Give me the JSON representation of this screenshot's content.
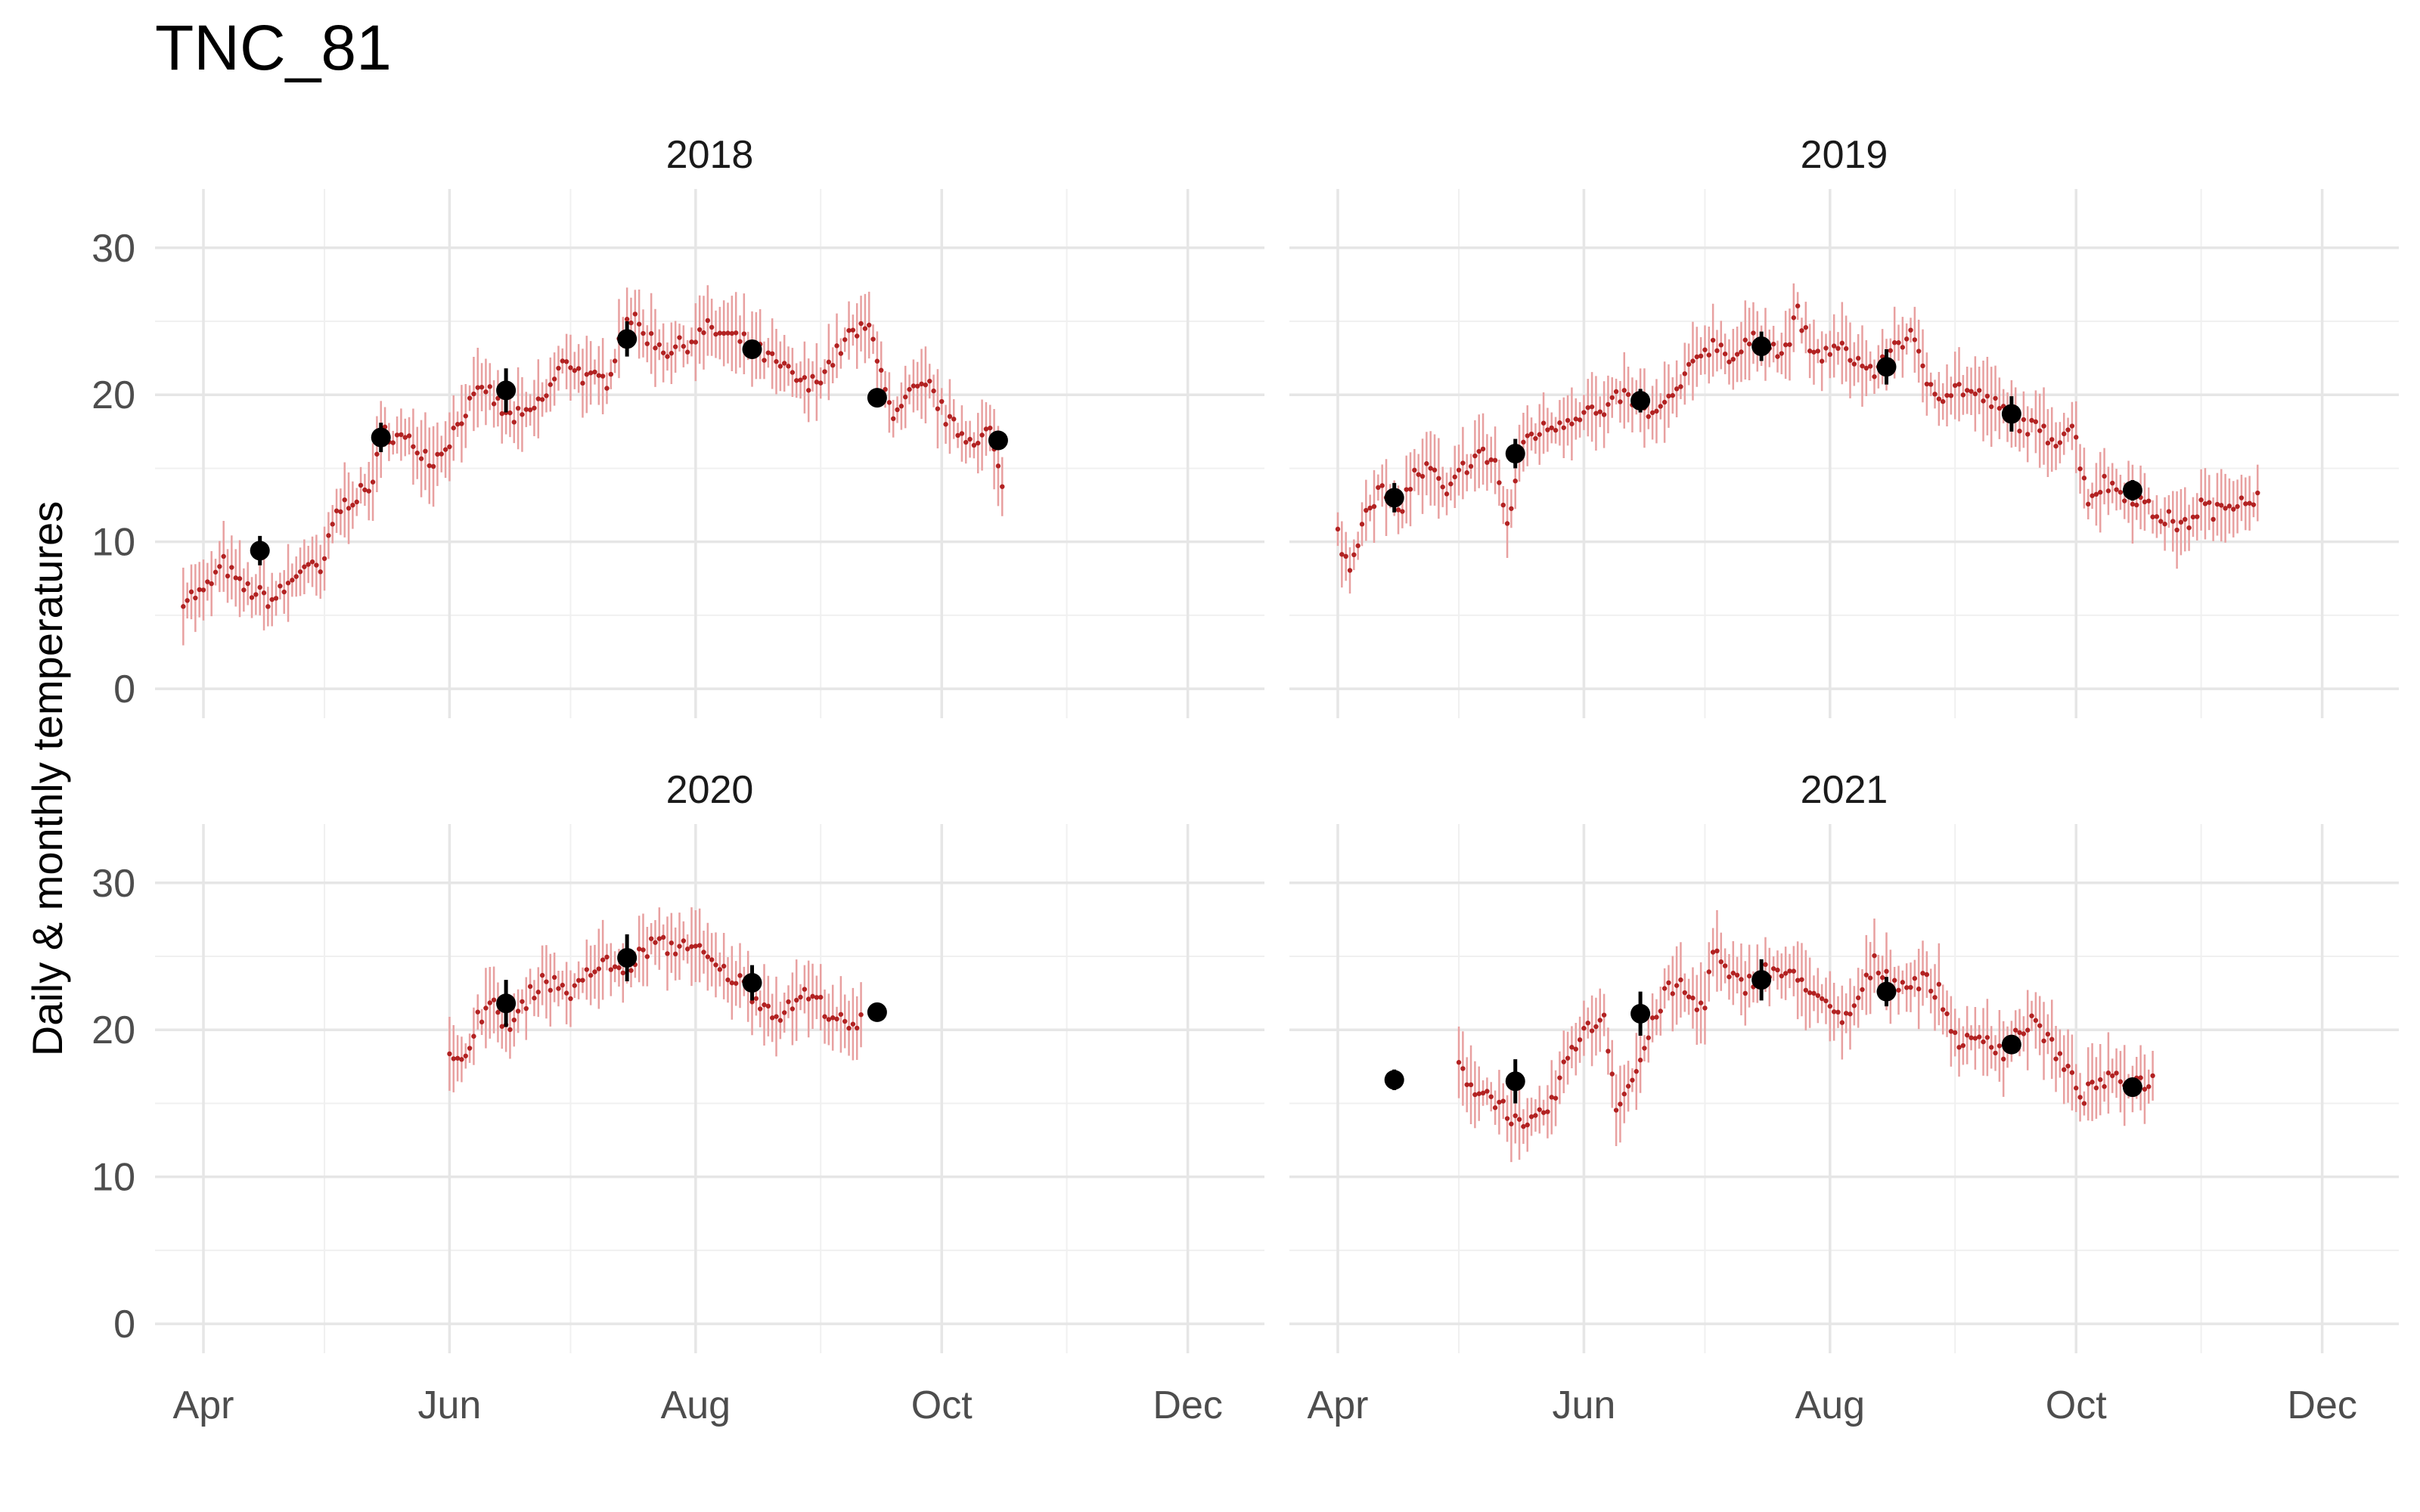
{
  "chart_data": {
    "type": "scatter",
    "title": "TNC_81",
    "ylabel": "Daily & monthly temperatures",
    "xlabel": "",
    "ylim": [
      0,
      30
    ],
    "yticks": [
      0,
      10,
      20,
      30
    ],
    "xticks": [
      {
        "label": "Apr",
        "month": 4
      },
      {
        "label": "Jun",
        "month": 6
      },
      {
        "label": "Aug",
        "month": 8
      },
      {
        "label": "Oct",
        "month": 10
      },
      {
        "label": "Dec",
        "month": 12
      }
    ],
    "xrange": [
      "03-20",
      "12-20"
    ],
    "grid": true,
    "series_style": {
      "daily": {
        "name": "",
        "color": "#b22222",
        "errorbar_color": "#e8a0a0"
      },
      "monthly": {
        "name": "",
        "color": "#000000"
      }
    },
    "panels": [
      {
        "label": "2018",
        "daily_range": [
          "03-27",
          "10-16"
        ],
        "daily_path": [
          [
            "03-27",
            6.2
          ],
          [
            "04-01",
            6.5
          ],
          [
            "04-06",
            8.5
          ],
          [
            "04-10",
            7.0
          ],
          [
            "04-14",
            6.5
          ],
          [
            "04-18",
            6.0
          ],
          [
            "04-22",
            7.0
          ],
          [
            "04-26",
            8.5
          ],
          [
            "04-30",
            7.8
          ],
          [
            "05-04",
            12.0
          ],
          [
            "05-08",
            13.0
          ],
          [
            "05-12",
            13.5
          ],
          [
            "05-16",
            17.5
          ],
          [
            "05-20",
            17.0
          ],
          [
            "05-24",
            16.5
          ],
          [
            "05-28",
            15.5
          ],
          [
            "06-01",
            17.0
          ],
          [
            "06-05",
            19.0
          ],
          [
            "06-10",
            20.5
          ],
          [
            "06-15",
            18.5
          ],
          [
            "06-20",
            18.5
          ],
          [
            "06-25",
            20.0
          ],
          [
            "06-30",
            22.5
          ],
          [
            "07-05",
            21.0
          ],
          [
            "07-10",
            21.0
          ],
          [
            "07-15",
            25.5
          ],
          [
            "07-20",
            24.0
          ],
          [
            "07-25",
            23.0
          ],
          [
            "07-30",
            23.5
          ],
          [
            "08-04",
            24.5
          ],
          [
            "08-09",
            24.0
          ],
          [
            "08-14",
            23.5
          ],
          [
            "08-19",
            22.5
          ],
          [
            "08-24",
            21.5
          ],
          [
            "08-29",
            20.5
          ],
          [
            "09-03",
            22.0
          ],
          [
            "09-08",
            24.0
          ],
          [
            "09-13",
            24.5
          ],
          [
            "09-16",
            22.0
          ],
          [
            "09-19",
            18.0
          ],
          [
            "09-23",
            20.0
          ],
          [
            "09-28",
            20.5
          ],
          [
            "10-03",
            18.0
          ],
          [
            "10-08",
            17.0
          ],
          [
            "10-13",
            17.5
          ],
          [
            "10-16",
            13.5
          ]
        ],
        "monthly": [
          {
            "x": "04-15",
            "y": 9.4,
            "err": 1.0
          },
          {
            "x": "05-15",
            "y": 17.1,
            "err": 1.0
          },
          {
            "x": "06-15",
            "y": 20.3,
            "err": 1.5
          },
          {
            "x": "07-15",
            "y": 23.8,
            "err": 1.2
          },
          {
            "x": "08-15",
            "y": 23.1,
            "err": 0.6
          },
          {
            "x": "09-15",
            "y": 19.8,
            "err": 0.5
          },
          {
            "x": "10-15",
            "y": 16.9,
            "err": 0.5
          }
        ]
      },
      {
        "label": "2019",
        "daily_range": [
          "04-01",
          "11-15"
        ],
        "daily_path": [
          [
            "04-01",
            10.5
          ],
          [
            "04-04",
            8.0
          ],
          [
            "04-08",
            12.5
          ],
          [
            "04-12",
            13.5
          ],
          [
            "04-16",
            12.0
          ],
          [
            "04-20",
            14.5
          ],
          [
            "04-24",
            15.0
          ],
          [
            "04-28",
            13.0
          ],
          [
            "05-02",
            15.0
          ],
          [
            "05-06",
            16.0
          ],
          [
            "05-10",
            15.5
          ],
          [
            "05-13",
            11.0
          ],
          [
            "05-17",
            17.0
          ],
          [
            "05-21",
            17.5
          ],
          [
            "05-25",
            18.0
          ],
          [
            "05-29",
            18.5
          ],
          [
            "06-02",
            19.0
          ],
          [
            "06-06",
            18.5
          ],
          [
            "06-10",
            20.0
          ],
          [
            "06-14",
            19.5
          ],
          [
            "06-18",
            18.5
          ],
          [
            "06-22",
            19.5
          ],
          [
            "06-26",
            21.0
          ],
          [
            "06-30",
            23.0
          ],
          [
            "07-04",
            23.5
          ],
          [
            "07-08",
            22.5
          ],
          [
            "07-12",
            23.5
          ],
          [
            "07-16",
            24.0
          ],
          [
            "07-20",
            22.5
          ],
          [
            "07-24",
            25.5
          ],
          [
            "07-28",
            22.5
          ],
          [
            "08-01",
            23.0
          ],
          [
            "08-05",
            23.0
          ],
          [
            "08-09",
            22.0
          ],
          [
            "08-13",
            21.5
          ],
          [
            "08-17",
            23.5
          ],
          [
            "08-21",
            24.0
          ],
          [
            "08-25",
            21.0
          ],
          [
            "08-29",
            20.0
          ],
          [
            "09-02",
            20.5
          ],
          [
            "09-06",
            20.0
          ],
          [
            "09-10",
            19.5
          ],
          [
            "09-14",
            18.5
          ],
          [
            "09-18",
            18.0
          ],
          [
            "09-22",
            17.5
          ],
          [
            "09-26",
            17.0
          ],
          [
            "09-30",
            18.0
          ],
          [
            "10-04",
            13.0
          ],
          [
            "10-08",
            14.0
          ],
          [
            "10-12",
            13.5
          ],
          [
            "10-16",
            13.0
          ],
          [
            "10-20",
            12.0
          ],
          [
            "10-24",
            11.5
          ],
          [
            "10-28",
            11.0
          ],
          [
            "11-01",
            12.5
          ],
          [
            "11-05",
            12.0
          ],
          [
            "11-10",
            13.0
          ],
          [
            "11-15",
            13.0
          ]
        ],
        "monthly": [
          {
            "x": "04-15",
            "y": 13.0,
            "err": 1.0
          },
          {
            "x": "05-15",
            "y": 16.0,
            "err": 1.0
          },
          {
            "x": "06-15",
            "y": 19.6,
            "err": 0.8
          },
          {
            "x": "07-15",
            "y": 23.3,
            "err": 1.0
          },
          {
            "x": "08-15",
            "y": 21.9,
            "err": 1.2
          },
          {
            "x": "09-15",
            "y": 18.7,
            "err": 1.2
          },
          {
            "x": "10-15",
            "y": 13.5,
            "err": 0.7
          }
        ]
      },
      {
        "label": "2020",
        "daily_range": [
          "06-01",
          "09-11"
        ],
        "daily_path": [
          [
            "06-01",
            18.0
          ],
          [
            "06-04",
            17.5
          ],
          [
            "06-08",
            21.0
          ],
          [
            "06-12",
            21.5
          ],
          [
            "06-16",
            20.0
          ],
          [
            "06-20",
            22.0
          ],
          [
            "06-24",
            23.5
          ],
          [
            "06-28",
            23.0
          ],
          [
            "07-02",
            22.5
          ],
          [
            "07-06",
            24.0
          ],
          [
            "07-10",
            24.5
          ],
          [
            "07-14",
            24.0
          ],
          [
            "07-18",
            25.0
          ],
          [
            "07-22",
            26.0
          ],
          [
            "07-26",
            25.5
          ],
          [
            "07-30",
            26.0
          ],
          [
            "08-03",
            25.0
          ],
          [
            "08-07",
            24.0
          ],
          [
            "08-11",
            23.5
          ],
          [
            "08-15",
            22.5
          ],
          [
            "08-19",
            21.5
          ],
          [
            "08-23",
            21.0
          ],
          [
            "08-27",
            22.5
          ],
          [
            "08-31",
            22.0
          ],
          [
            "09-04",
            21.0
          ],
          [
            "09-08",
            20.0
          ],
          [
            "09-11",
            20.5
          ]
        ],
        "monthly": [
          {
            "x": "06-15",
            "y": 21.8,
            "err": 1.6
          },
          {
            "x": "07-15",
            "y": 24.9,
            "err": 1.6
          },
          {
            "x": "08-15",
            "y": 23.2,
            "err": 1.2
          },
          {
            "x": "09-15",
            "y": 21.2,
            "err": 0.6
          }
        ]
      },
      {
        "label": "2021",
        "daily_range": [
          "05-01",
          "10-20"
        ],
        "daily_path": [
          [
            "05-01",
            17.5
          ],
          [
            "05-05",
            16.0
          ],
          [
            "05-09",
            15.5
          ],
          [
            "05-13",
            14.5
          ],
          [
            "05-17",
            13.0
          ],
          [
            "05-21",
            14.0
          ],
          [
            "05-25",
            15.5
          ],
          [
            "05-29",
            19.0
          ],
          [
            "06-02",
            20.0
          ],
          [
            "06-06",
            21.0
          ],
          [
            "06-09",
            15.0
          ],
          [
            "06-13",
            16.5
          ],
          [
            "06-17",
            19.5
          ],
          [
            "06-21",
            22.5
          ],
          [
            "06-25",
            23.0
          ],
          [
            "06-29",
            21.5
          ],
          [
            "07-01",
            22.0
          ],
          [
            "07-03",
            25.5
          ],
          [
            "07-07",
            23.5
          ],
          [
            "07-11",
            23.0
          ],
          [
            "07-15",
            24.0
          ],
          [
            "07-19",
            24.0
          ],
          [
            "07-23",
            23.5
          ],
          [
            "07-27",
            23.0
          ],
          [
            "07-31",
            21.5
          ],
          [
            "08-04",
            20.5
          ],
          [
            "08-08",
            22.0
          ],
          [
            "08-12",
            24.5
          ],
          [
            "08-16",
            23.5
          ],
          [
            "08-20",
            23.0
          ],
          [
            "08-24",
            23.5
          ],
          [
            "08-28",
            22.5
          ],
          [
            "09-01",
            19.5
          ],
          [
            "09-05",
            19.0
          ],
          [
            "09-09",
            19.5
          ],
          [
            "09-13",
            18.5
          ],
          [
            "09-17",
            20.0
          ],
          [
            "09-21",
            20.5
          ],
          [
            "09-25",
            19.0
          ],
          [
            "09-29",
            17.0
          ],
          [
            "10-03",
            15.5
          ],
          [
            "10-07",
            16.5
          ],
          [
            "10-11",
            16.5
          ]
        ],
        "monthly": [
          {
            "x": "04-15",
            "y": 16.6,
            "err": 0.7
          },
          {
            "x": "05-15",
            "y": 16.5,
            "err": 1.5
          },
          {
            "x": "06-15",
            "y": 21.1,
            "err": 1.5
          },
          {
            "x": "07-15",
            "y": 23.4,
            "err": 1.4
          },
          {
            "x": "08-15",
            "y": 22.6,
            "err": 1.0
          },
          {
            "x": "09-15",
            "y": 19.0,
            "err": 0.5
          },
          {
            "x": "10-15",
            "y": 16.1,
            "err": 0.4
          }
        ]
      }
    ]
  }
}
